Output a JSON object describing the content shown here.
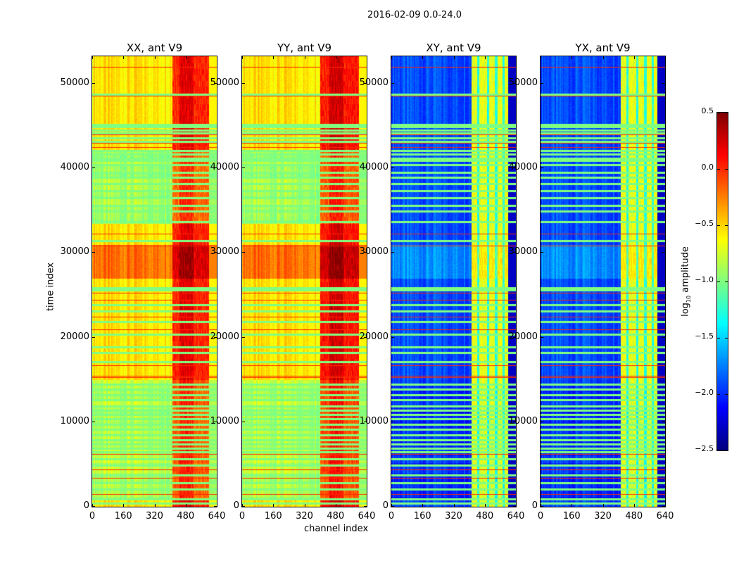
{
  "suptitle": "2016-02-09 0.0-24.0",
  "xlabel": "channel index",
  "ylabel": "time index",
  "colorbar": {
    "label_prefix": "log",
    "label_sub": "10",
    "label_suffix": " amplitude",
    "range": [
      -2.5,
      0.5
    ],
    "ticks": [
      "0.5",
      "0.0",
      "−0.5",
      "−1.0",
      "−1.5",
      "−2.0",
      "−2.5"
    ],
    "tick_values": [
      0.5,
      0.0,
      -0.5,
      -1.0,
      -1.5,
      -2.0,
      -2.5
    ],
    "colormap": "jet"
  },
  "chart_data": [
    {
      "type": "heatmap",
      "title": "XX, ant V9",
      "xlim": [
        0,
        640
      ],
      "ylim": [
        0,
        53250
      ],
      "xticks": [
        "0",
        "160",
        "320",
        "480",
        "640"
      ],
      "xtick_values": [
        0,
        160,
        320,
        480,
        640
      ],
      "yticks": [
        "0",
        "10000",
        "20000",
        "30000",
        "40000",
        "50000"
      ],
      "ytick_values": [
        0,
        10000,
        20000,
        30000,
        40000,
        50000
      ],
      "base_log_amp": -0.55,
      "bright_band_channels": [
        410,
        600
      ],
      "bright_band_log_amp": 0.0,
      "high_time_ranges": [
        [
          27000,
          31000,
          -0.2
        ]
      ],
      "low_time_ranges": [
        [
          33500,
          42000,
          -0.9
        ],
        [
          1000,
          15000,
          -0.85
        ]
      ]
    },
    {
      "type": "heatmap",
      "title": "YY, ant V9",
      "xlim": [
        0,
        640
      ],
      "ylim": [
        0,
        53250
      ],
      "xticks": [
        "0",
        "160",
        "320",
        "480",
        "640"
      ],
      "xtick_values": [
        0,
        160,
        320,
        480,
        640
      ],
      "yticks": [
        "0",
        "10000",
        "20000",
        "30000",
        "40000",
        "50000"
      ],
      "ytick_values": [
        0,
        10000,
        20000,
        30000,
        40000,
        50000
      ],
      "base_log_amp": -0.55,
      "bright_band_channels": [
        400,
        600
      ],
      "bright_band_log_amp": 0.05,
      "high_time_ranges": [
        [
          27000,
          31000,
          -0.2
        ]
      ],
      "low_time_ranges": [
        [
          33500,
          42000,
          -0.9
        ],
        [
          1000,
          15000,
          -0.85
        ]
      ]
    },
    {
      "type": "heatmap",
      "title": "XY, ant V9",
      "xlim": [
        0,
        640
      ],
      "ylim": [
        0,
        53250
      ],
      "xticks": [
        "0",
        "160",
        "320",
        "480",
        "640"
      ],
      "xtick_values": [
        0,
        160,
        320,
        480,
        640
      ],
      "yticks": [
        "0",
        "10000",
        "20000",
        "30000",
        "40000",
        "50000"
      ],
      "ytick_values": [
        0,
        10000,
        20000,
        30000,
        40000,
        50000
      ],
      "base_log_amp": -1.9,
      "bright_band_channels": [
        410,
        600
      ],
      "bright_band_log_amp": -0.7,
      "high_time_ranges": [
        [
          27000,
          31000,
          -1.7
        ]
      ],
      "low_time_ranges": [
        [
          600,
          15000,
          -2.0
        ]
      ]
    },
    {
      "type": "heatmap",
      "title": "YX, ant V9",
      "xlim": [
        0,
        640
      ],
      "ylim": [
        0,
        53250
      ],
      "xticks": [
        "0",
        "160",
        "320",
        "480",
        "640"
      ],
      "xtick_values": [
        0,
        160,
        320,
        480,
        640
      ],
      "yticks": [
        "0",
        "10000",
        "20000",
        "30000",
        "40000",
        "50000"
      ],
      "ytick_values": [
        0,
        10000,
        20000,
        30000,
        40000,
        50000
      ],
      "base_log_amp": -1.9,
      "bright_band_channels": [
        410,
        600
      ],
      "bright_band_log_amp": -0.7,
      "high_time_ranges": [
        [
          27000,
          31000,
          -1.7
        ]
      ],
      "low_time_ranges": [
        [
          600,
          15000,
          -2.0
        ]
      ]
    }
  ],
  "flagged_rows": {
    "red_log_amp": 0.0,
    "green_log_amp": -1.0,
    "red_times": [
      52000,
      48600,
      44000,
      43000,
      42500,
      32300,
      30900,
      25300,
      24500,
      22500,
      21000,
      16700,
      15500,
      15300,
      6200,
      4400,
      3400,
      1500
    ],
    "green_times": [
      48800,
      45300,
      45000,
      44600,
      44300,
      43700,
      43300,
      42200,
      41800,
      41300,
      41000,
      40500,
      39600,
      39000,
      38300,
      37400,
      36600,
      35700,
      35000,
      33800,
      31500,
      26000,
      25700,
      24000,
      23200,
      22000,
      20500,
      19000,
      18300,
      17200,
      14600,
      14000,
      13300,
      12700,
      12000,
      11500,
      11000,
      10500,
      9800,
      9200,
      8600,
      8000,
      7500,
      7000,
      6600,
      5700,
      5000,
      3800,
      2900,
      2200,
      1000,
      500
    ]
  }
}
